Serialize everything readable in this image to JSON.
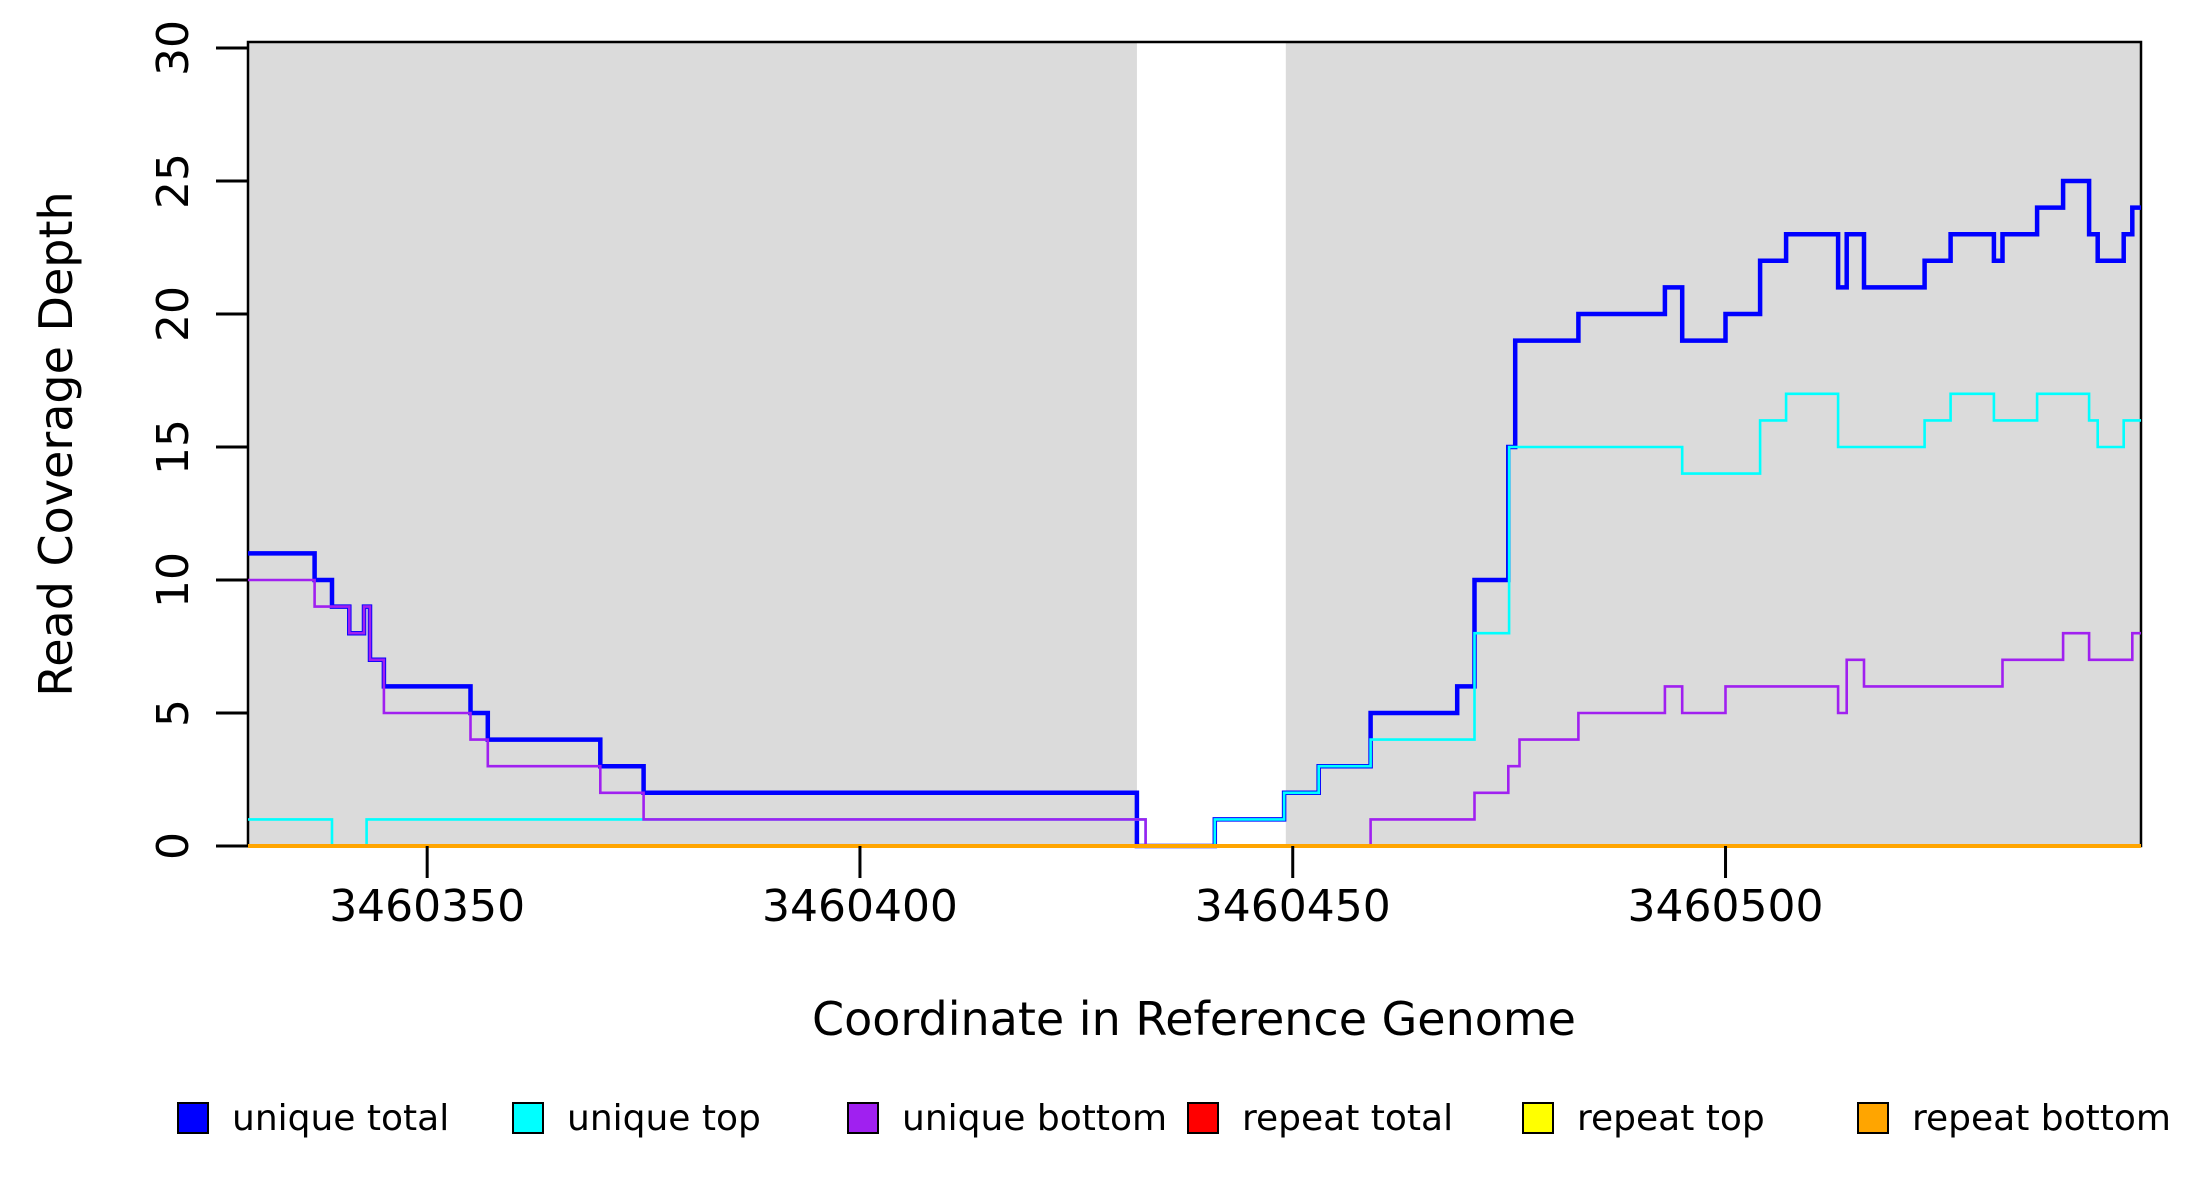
{
  "chart_data": {
    "type": "line",
    "subtype": "step-post",
    "title": "",
    "xlabel": "Coordinate in Reference Genome",
    "ylabel": "Read Coverage Depth",
    "xlim": [
      3460329.3,
      3460548
    ],
    "ylim": [
      0,
      30
    ],
    "x_ticks": [
      3460350,
      3460400,
      3460450,
      3460500
    ],
    "y_ticks": [
      0,
      5,
      10,
      15,
      20,
      25,
      30
    ],
    "grid": false,
    "legend_position": "bottom",
    "plot_background": "#ffffff",
    "shaded_regions": [
      {
        "name": "aligned-block-left",
        "x0": 3460329.3,
        "x1": 3460432,
        "color": "#dbdbdb"
      },
      {
        "name": "aligned-block-right",
        "x0": 3460449.2,
        "x1": 3460548,
        "color": "#dbdbdb"
      }
    ],
    "gap_region": {
      "name": "unaligned-gap",
      "x0": 3460432,
      "x1": 3460449.2,
      "color": "#ffffff"
    },
    "series": [
      {
        "name": "unique total",
        "color": "#0000ff",
        "width": 4.5,
        "points": [
          [
            3460329.3,
            11
          ],
          [
            3460337,
            10
          ],
          [
            3460339,
            9
          ],
          [
            3460341,
            8
          ],
          [
            3460342.7,
            9
          ],
          [
            3460343.4,
            7
          ],
          [
            3460345,
            6
          ],
          [
            3460355,
            5
          ],
          [
            3460357,
            4
          ],
          [
            3460370,
            3
          ],
          [
            3460375,
            2
          ],
          [
            3460432,
            0
          ],
          [
            3460441,
            1
          ],
          [
            3460449,
            2
          ],
          [
            3460453,
            3
          ],
          [
            3460459,
            5
          ],
          [
            3460469,
            6
          ],
          [
            3460471,
            10
          ],
          [
            3460474.9,
            15
          ],
          [
            3460475.7,
            19
          ],
          [
            3460483,
            20
          ],
          [
            3460493,
            21
          ],
          [
            3460495,
            19
          ],
          [
            3460500,
            20
          ],
          [
            3460504,
            22
          ],
          [
            3460507,
            23
          ],
          [
            3460513,
            21
          ],
          [
            3460514,
            23
          ],
          [
            3460516,
            21
          ],
          [
            3460523,
            22
          ],
          [
            3460526,
            23
          ],
          [
            3460531,
            22
          ],
          [
            3460532,
            23
          ],
          [
            3460536,
            24
          ],
          [
            3460539,
            25
          ],
          [
            3460542,
            23
          ],
          [
            3460543,
            22
          ],
          [
            3460546,
            23
          ],
          [
            3460547,
            24
          ]
        ]
      },
      {
        "name": "unique top",
        "color": "#00ffff",
        "width": 2.6,
        "points": [
          [
            3460329.3,
            1
          ],
          [
            3460339,
            0
          ],
          [
            3460343,
            1
          ],
          [
            3460433,
            0
          ],
          [
            3460441,
            1
          ],
          [
            3460449,
            2
          ],
          [
            3460453,
            3
          ],
          [
            3460459,
            4
          ],
          [
            3460471,
            8
          ],
          [
            3460475,
            15
          ],
          [
            3460495,
            14
          ],
          [
            3460504,
            16
          ],
          [
            3460507,
            17
          ],
          [
            3460513,
            15
          ],
          [
            3460523,
            16
          ],
          [
            3460526,
            17
          ],
          [
            3460531,
            16
          ],
          [
            3460536,
            17
          ],
          [
            3460542,
            16
          ],
          [
            3460543,
            15
          ],
          [
            3460546,
            16
          ]
        ]
      },
      {
        "name": "unique bottom",
        "color": "#a020f0",
        "width": 2.6,
        "points": [
          [
            3460329.3,
            10
          ],
          [
            3460337,
            9
          ],
          [
            3460341,
            8
          ],
          [
            3460342.7,
            9
          ],
          [
            3460343.4,
            7
          ],
          [
            3460345,
            5
          ],
          [
            3460355,
            4
          ],
          [
            3460357,
            3
          ],
          [
            3460370,
            2
          ],
          [
            3460375,
            1
          ],
          [
            3460433,
            0
          ],
          [
            3460459,
            1
          ],
          [
            3460471,
            2
          ],
          [
            3460474.9,
            3
          ],
          [
            3460476.2,
            4
          ],
          [
            3460483,
            5
          ],
          [
            3460493,
            6
          ],
          [
            3460495,
            5
          ],
          [
            3460500,
            6
          ],
          [
            3460513,
            5
          ],
          [
            3460514,
            7
          ],
          [
            3460516,
            6
          ],
          [
            3460532,
            7
          ],
          [
            3460539,
            8
          ],
          [
            3460542,
            7
          ],
          [
            3460547,
            8
          ]
        ]
      },
      {
        "name": "repeat total",
        "color": "#ff0000",
        "width": 2.6,
        "points": [
          [
            3460329.3,
            0
          ]
        ]
      },
      {
        "name": "repeat top",
        "color": "#ffff00",
        "width": 2.6,
        "points": [
          [
            3460329.3,
            0
          ]
        ]
      },
      {
        "name": "repeat bottom",
        "color": "#ffa500",
        "width": 4,
        "points": [
          [
            3460329.3,
            0
          ]
        ]
      }
    ],
    "legend": [
      {
        "label": "unique total",
        "color": "#0000ff"
      },
      {
        "label": "unique top",
        "color": "#00ffff"
      },
      {
        "label": "unique bottom",
        "color": "#a020f0"
      },
      {
        "label": "repeat total",
        "color": "#ff0000"
      },
      {
        "label": "repeat top",
        "color": "#ffff00"
      },
      {
        "label": "repeat bottom",
        "color": "#ffa500"
      }
    ]
  },
  "colors": {
    "axis": "#000000",
    "shaded_region": "#dbdbdb",
    "background": "#ffffff"
  }
}
